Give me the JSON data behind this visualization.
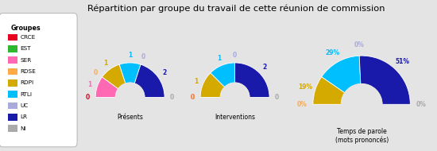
{
  "title": "Répartition par groupe du travail de cette réunion de commission",
  "background_color": "#e4e4e4",
  "legend_title": "Groupes",
  "groups": [
    "CRCE",
    "EST",
    "SER",
    "RDSE",
    "RDPI",
    "RTLI",
    "UC",
    "LR",
    "NI"
  ],
  "colors": [
    "#e8001c",
    "#2eb82e",
    "#ff69b4",
    "#ffaa44",
    "#d4aa00",
    "#00bfff",
    "#aaaadd",
    "#1a1aaa",
    "#aaaaaa"
  ],
  "charts": [
    {
      "title": "Présents",
      "values": [
        0,
        0,
        1,
        0,
        1,
        1,
        0,
        2,
        0
      ],
      "labels": [
        "0",
        null,
        "1",
        "0",
        "1",
        "1",
        "0",
        "2",
        "0"
      ],
      "label_angles": [
        null,
        null,
        150,
        170,
        120,
        60,
        null,
        10,
        175
      ],
      "is_percent": false
    },
    {
      "title": "Interventions",
      "values": [
        0,
        0,
        0,
        0,
        1,
        1,
        0,
        2,
        0
      ],
      "labels": [
        "0",
        null,
        null,
        "0",
        "1",
        "1",
        "0",
        "2",
        "0"
      ],
      "label_angles": [
        null,
        null,
        null,
        null,
        120,
        60,
        null,
        10,
        175
      ],
      "is_percent": false
    },
    {
      "title": "Temps de parole\n(mots prononcés)",
      "values": [
        0,
        0,
        0,
        0,
        19,
        29,
        0,
        51,
        0
      ],
      "labels": [
        null,
        null,
        null,
        "0%",
        "19%",
        "29%",
        "0%",
        "51%",
        "0%"
      ],
      "label_angles": [
        null,
        null,
        null,
        null,
        120,
        60,
        null,
        10,
        175
      ],
      "is_percent": true
    }
  ]
}
